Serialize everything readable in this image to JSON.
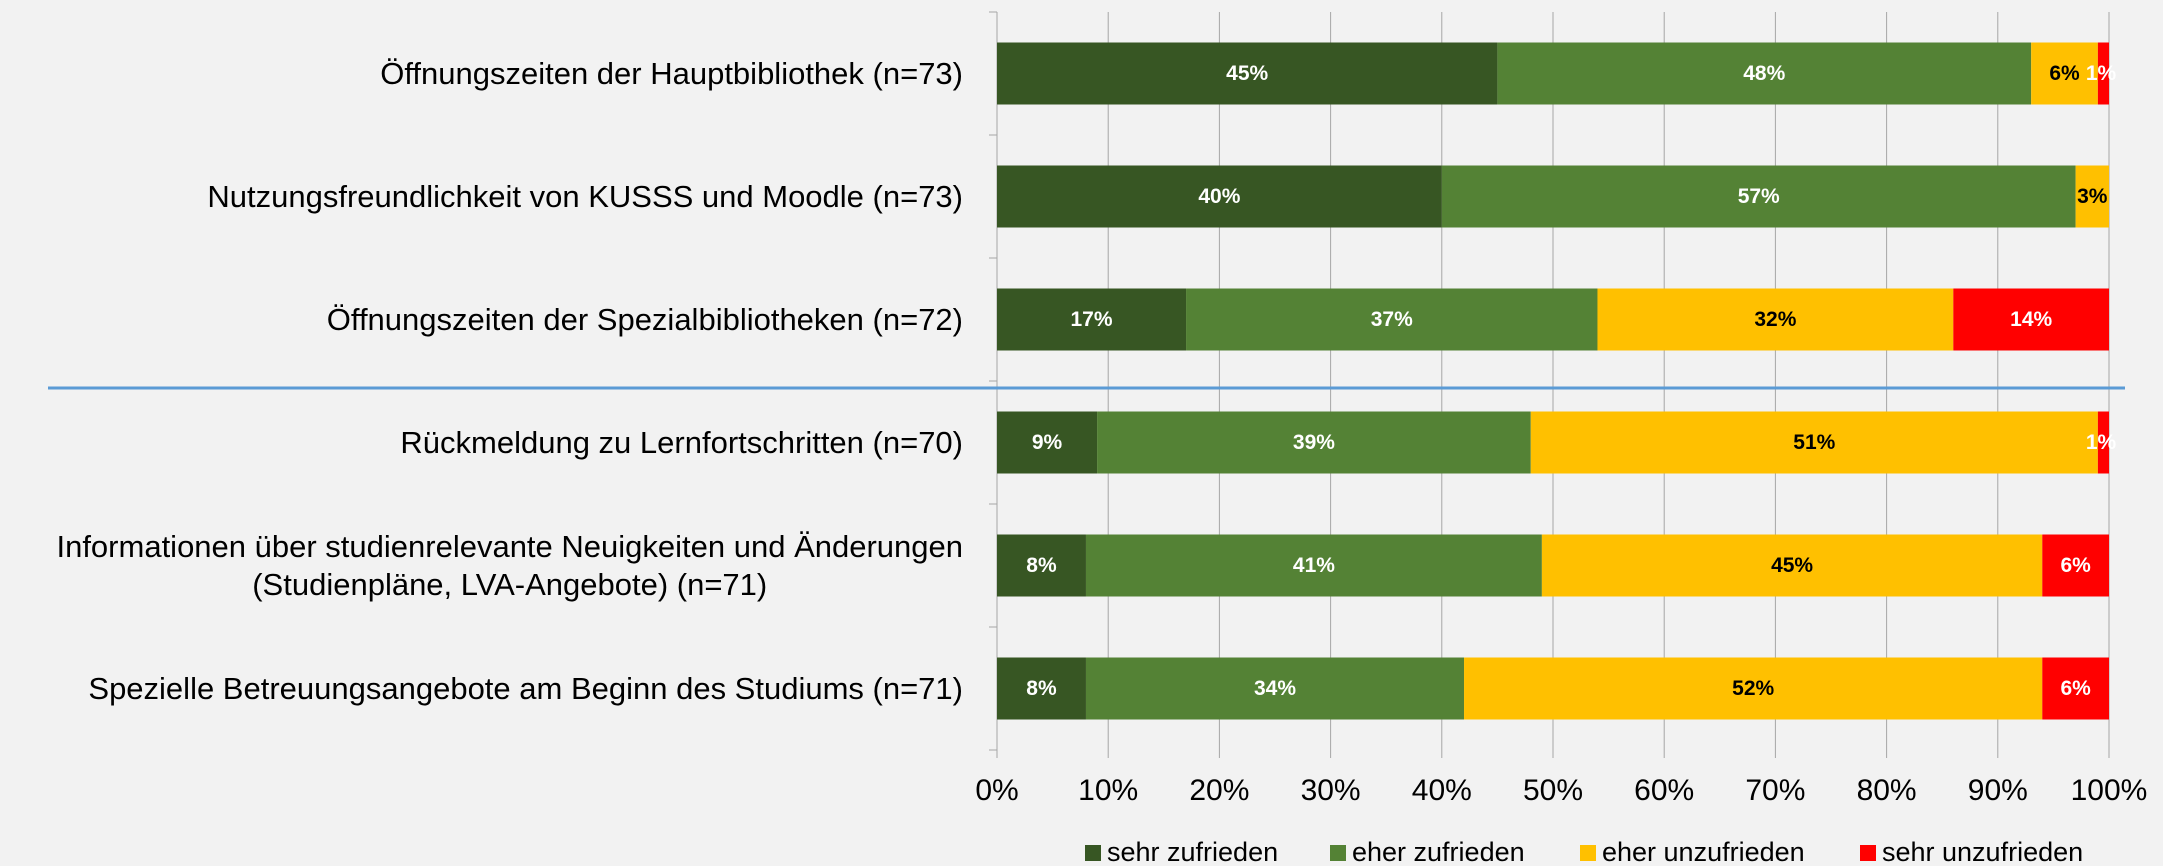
{
  "chart_data": {
    "type": "stacked_bar_horizontal",
    "categories": [
      "Öffnungszeiten der Hauptbibliothek (n=73)",
      "Nutzungsfreundlichkeit von KUSSS und Moodle  (n=73)",
      "Öffnungszeiten der Spezialbibliotheken (n=72)",
      "Rückmeldung zu Lernfortschritten  (n=70)",
      "Informationen über studienrelevante Neuigkeiten und Änderungen\n(Studienpläne, LVA-Angebote)  (n=71)",
      "Spezielle Betreuungsangebote am Beginn des Studiums  (n=71)"
    ],
    "series": [
      {
        "name": "sehr zufrieden",
        "color": "#375623",
        "label_color": "#ffffff",
        "values": [
          45,
          40,
          17,
          9,
          8,
          8
        ],
        "value_labels": [
          "45%",
          "40%",
          "17%",
          "9%",
          "8%",
          "8%"
        ]
      },
      {
        "name": "eher zufrieden",
        "color": "#548235",
        "label_color": "#ffffff",
        "values": [
          48,
          57,
          37,
          39,
          41,
          34
        ],
        "value_labels": [
          "48%",
          "57%",
          "37%",
          "39%",
          "41%",
          "34%"
        ]
      },
      {
        "name": "eher unzufrieden",
        "color": "#ffc000",
        "label_color": "#000000",
        "values": [
          6,
          3,
          32,
          51,
          45,
          52
        ],
        "value_labels": [
          "6%",
          "3%",
          "32%",
          "51%",
          "45%",
          "52%"
        ]
      },
      {
        "name": "sehr unzufrieden",
        "color": "#ff0000",
        "label_color": "#ffffff",
        "values": [
          1,
          null,
          14,
          1,
          6,
          6
        ],
        "value_labels": [
          "1%",
          null,
          "14%",
          "1%",
          "6%",
          "6%"
        ]
      }
    ],
    "xlim": [
      0,
      100
    ],
    "xticks": [
      {
        "value": 0,
        "label": "0%"
      },
      {
        "value": 10,
        "label": "10%"
      },
      {
        "value": 20,
        "label": "20%"
      },
      {
        "value": 30,
        "label": "30%"
      },
      {
        "value": 40,
        "label": "40%"
      },
      {
        "value": 50,
        "label": "50%"
      },
      {
        "value": 60,
        "label": "60%"
      },
      {
        "value": 70,
        "label": "70%"
      },
      {
        "value": 80,
        "label": "80%"
      },
      {
        "value": 90,
        "label": "90%"
      },
      {
        "value": 100,
        "label": "100%"
      }
    ],
    "grid": true,
    "legend": "bottom"
  }
}
